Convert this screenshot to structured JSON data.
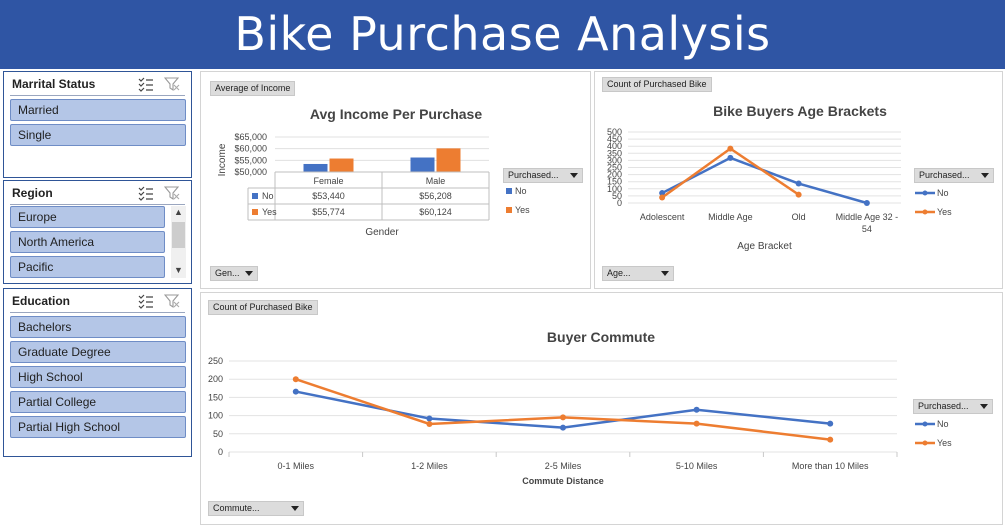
{
  "banner": {
    "title": "Bike Purchase Analysis"
  },
  "slicers": {
    "marital": {
      "title": "Marrital Status",
      "items": [
        "Married",
        "Single"
      ]
    },
    "region": {
      "title": "Region",
      "items": [
        "Europe",
        "North America",
        "Pacific"
      ]
    },
    "education": {
      "title": "Education",
      "items": [
        "Bachelors",
        "Graduate Degree",
        "High School",
        "Partial College",
        "Partial High School"
      ]
    }
  },
  "colors": {
    "no": "#4472c4",
    "yes": "#ed7d31",
    "slicer_item": "#b4c6e7",
    "banner": "#2f55a4"
  },
  "chart_data": [
    {
      "type": "bar",
      "title": "Avg Income Per Purchase",
      "field_button": "Average of Income",
      "axis_button": "Gen...",
      "legend_button": "Purchased...",
      "xlabel": "Gender",
      "ylabel": "Income",
      "yticks": [
        "$50,000",
        "$55,000",
        "$60,000",
        "$65,000"
      ],
      "ylim": [
        50000,
        65000
      ],
      "categories": [
        "Female",
        "Male"
      ],
      "series": [
        {
          "name": "No",
          "values": [
            53440,
            56208
          ],
          "labels": [
            "$53,440",
            "$56,208"
          ]
        },
        {
          "name": "Yes",
          "values": [
            55774,
            60124
          ],
          "labels": [
            "$55,774",
            "$60,124"
          ]
        }
      ]
    },
    {
      "type": "line",
      "title": "Bike Buyers Age Brackets",
      "field_button": "Count of Purchased Bike",
      "axis_button": "Age...",
      "legend_button": "Purchased...",
      "xlabel": "Age Bracket",
      "ylabel": "",
      "yticks": [
        "0",
        "50",
        "100",
        "150",
        "200",
        "250",
        "300",
        "350",
        "400",
        "450",
        "500"
      ],
      "ylim": [
        0,
        500
      ],
      "categories": [
        "Adolescent",
        "Middle Age",
        "Old",
        "Middle Age 32 - 54"
      ],
      "series": [
        {
          "name": "No",
          "values": [
            70,
            318,
            137,
            0
          ]
        },
        {
          "name": "Yes",
          "values": [
            39,
            383,
            59,
            null
          ]
        }
      ]
    },
    {
      "type": "line",
      "title": "Buyer Commute",
      "field_button": "Count of Purchased Bike",
      "axis_button": "Commute...",
      "legend_button": "Purchased...",
      "xlabel": "Commute Distance",
      "ylabel": "",
      "yticks": [
        "0",
        "50",
        "100",
        "150",
        "200",
        "250"
      ],
      "ylim": [
        0,
        250
      ],
      "categories": [
        "0-1 Miles",
        "1-2 Miles",
        "2-5 Miles",
        "5-10 Miles",
        "More than 10 Miles"
      ],
      "series": [
        {
          "name": "No",
          "values": [
            166,
            92,
            67,
            116,
            78
          ]
        },
        {
          "name": "Yes",
          "values": [
            200,
            77,
            95,
            78,
            34
          ]
        }
      ]
    }
  ]
}
